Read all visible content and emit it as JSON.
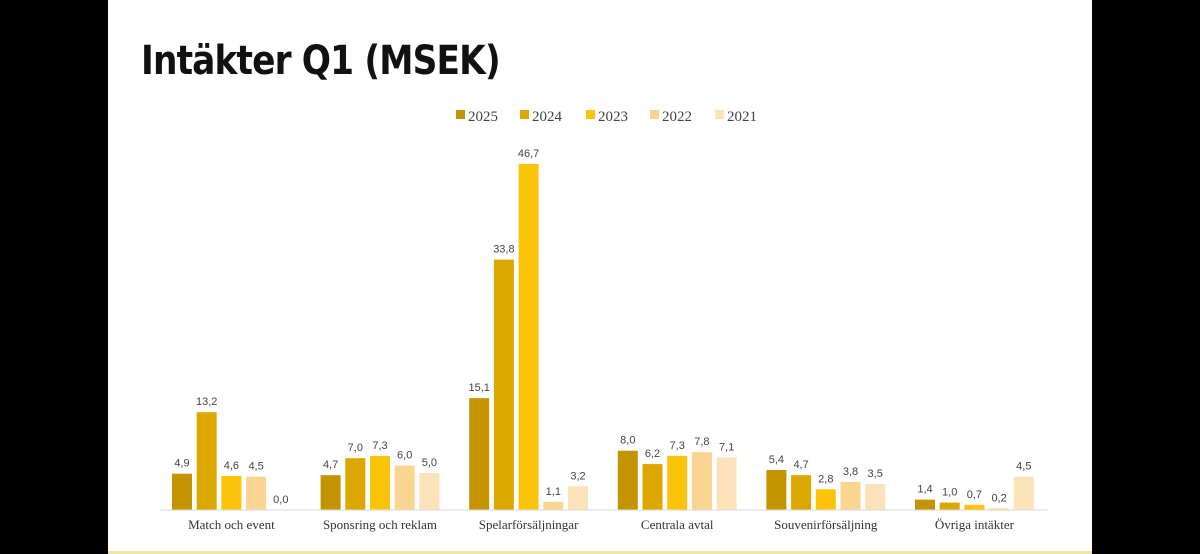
{
  "title": "Intäkter Q1 (MSEK)",
  "chart_data": {
    "type": "bar",
    "title": "Intäkter Q1 (MSEK)",
    "categories": [
      "Match och event",
      "Sponsring och reklam",
      "Spelarförsäljningar",
      "Centrala avtal",
      "Souvenirförsäljning",
      "Övriga intäkter"
    ],
    "series": [
      {
        "name": "2025",
        "color": "#c49300",
        "values": [
          4.9,
          4.7,
          15.1,
          8.0,
          5.4,
          1.4
        ],
        "labels": [
          "4,9",
          "4,7",
          "15,1",
          "8,0",
          "5,4",
          "1,4"
        ]
      },
      {
        "name": "2024",
        "color": "#dca800",
        "values": [
          13.2,
          7.0,
          33.8,
          6.2,
          4.7,
          1.0
        ],
        "labels": [
          "13,2",
          "7,0",
          "33,8",
          "6,2",
          "4,7",
          "1,0"
        ]
      },
      {
        "name": "2023",
        "color": "#fbc40a",
        "values": [
          4.6,
          7.3,
          46.7,
          7.3,
          2.8,
          0.7
        ],
        "labels": [
          "4,6",
          "7,3",
          "46,7",
          "7,3",
          "2,8",
          "0,7"
        ]
      },
      {
        "name": "2022",
        "color": "#fad491",
        "values": [
          4.5,
          6.0,
          1.1,
          7.8,
          3.8,
          0.2
        ],
        "labels": [
          "4,5",
          "6,0",
          "1,1",
          "7,8",
          "3,8",
          "0,2"
        ]
      },
      {
        "name": "2021",
        "color": "#fbe2b9",
        "values": [
          0.0,
          5.0,
          3.2,
          7.1,
          3.5,
          4.5
        ],
        "labels": [
          "0,0",
          "5,0",
          "3,2",
          "7,1",
          "3,5",
          "4,5"
        ]
      }
    ],
    "ylim": [
      0,
      46.7
    ],
    "legend": "top",
    "grid": false,
    "xlabel": "",
    "ylabel": ""
  }
}
